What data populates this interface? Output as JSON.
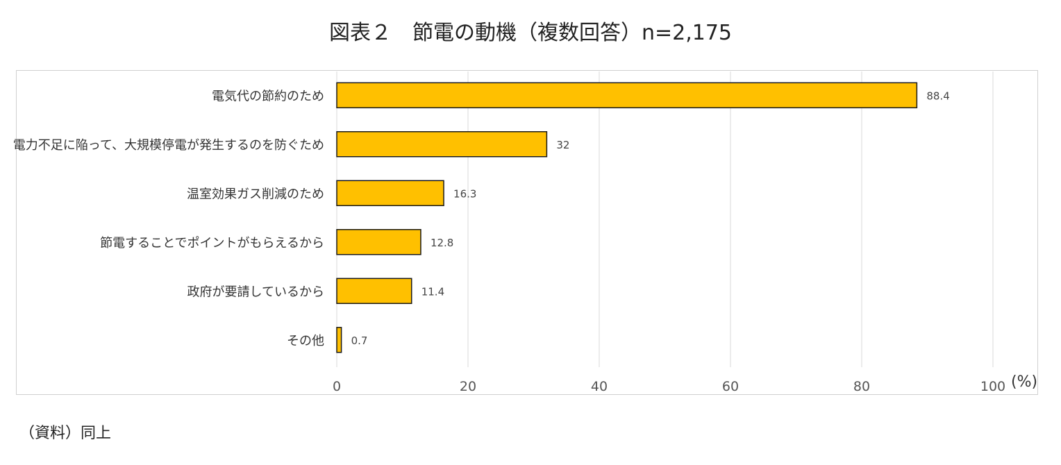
{
  "title": "図表２　節電の動機（複数回答）n=2,175",
  "source": "（資料）同上",
  "chart_data": {
    "type": "bar",
    "orientation": "horizontal",
    "categories": [
      "電気代の節約のため",
      "電力不足に陥って、大規模停電が発生するのを防ぐため",
      "温室効果ガス削減のため",
      "節電することでポイントがもらえるから",
      "政府が要請しているから",
      "その他"
    ],
    "values": [
      88.4,
      32,
      16.3,
      12.8,
      11.4,
      0.7
    ],
    "value_labels": [
      "88.4",
      "32",
      "16.3",
      "12.8",
      "11.4",
      "0.7"
    ],
    "xlim": [
      0,
      100
    ],
    "x_ticks": [
      "0",
      "20",
      "40",
      "60",
      "80",
      "100"
    ],
    "x_unit": "(%)",
    "grid": "vertical",
    "bar_color": "#FFC000",
    "bar_stroke": "#1a1a1a"
  }
}
